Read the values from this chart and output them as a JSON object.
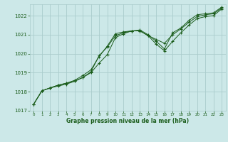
{
  "background_color": "#cce8e8",
  "grid_color": "#aacccc",
  "line_color": "#1a5c1a",
  "marker_color": "#1a5c1a",
  "xlabel": "Graphe pression niveau de la mer (hPa)",
  "ylim": [
    1017,
    1022.6
  ],
  "xlim": [
    -0.5,
    23.5
  ],
  "yticks": [
    1017,
    1018,
    1019,
    1020,
    1021,
    1022
  ],
  "xticks": [
    0,
    1,
    2,
    3,
    4,
    5,
    6,
    7,
    8,
    9,
    10,
    11,
    12,
    13,
    14,
    15,
    16,
    17,
    18,
    19,
    20,
    21,
    22,
    23
  ],
  "series1": [
    1017.35,
    1018.05,
    1018.2,
    1018.3,
    1018.4,
    1018.55,
    1018.75,
    1019.05,
    1019.9,
    1020.35,
    1020.95,
    1021.1,
    1021.2,
    1021.2,
    1020.95,
    1020.75,
    1020.55,
    1021.0,
    1021.3,
    1021.65,
    1021.95,
    1022.05,
    1022.1,
    1022.4
  ],
  "series2": [
    1017.35,
    1018.05,
    1018.2,
    1018.35,
    1018.45,
    1018.6,
    1018.85,
    1019.15,
    1019.85,
    1020.4,
    1021.05,
    1021.15,
    1021.2,
    1021.25,
    1021.0,
    1020.65,
    1020.25,
    1021.1,
    1021.35,
    1021.75,
    1022.05,
    1022.1,
    1022.15,
    1022.45
  ],
  "series3": [
    1017.35,
    1018.05,
    1018.2,
    1018.35,
    1018.45,
    1018.55,
    1018.75,
    1019.0,
    1019.5,
    1019.95,
    1020.85,
    1021.05,
    1021.2,
    1021.2,
    1020.95,
    1020.5,
    1020.15,
    1020.65,
    1021.1,
    1021.5,
    1021.85,
    1021.95,
    1022.0,
    1022.35
  ]
}
